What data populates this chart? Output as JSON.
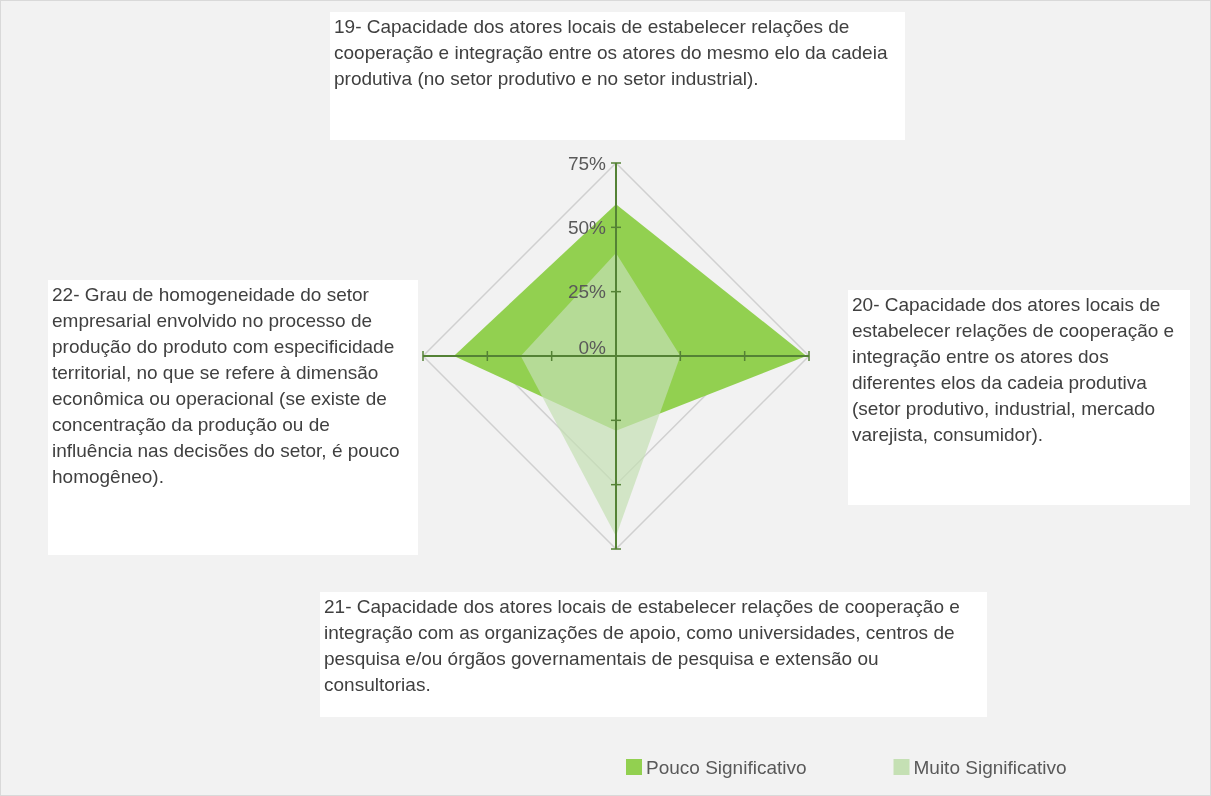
{
  "chart_data": {
    "type": "radar",
    "categories": [
      "19- Capacidade dos atores locais de estabelecer relações de cooperação e integração entre os atores do mesmo elo da cadeia produtiva (no setor produtivo e no setor industrial).",
      "20- Capacidade dos atores locais de estabelecer relações de cooperação e integração entre os atores dos diferentes elos da cadeia produtiva (setor produtivo, industrial, mercado varejista, consumidor).",
      "21- Capacidade dos atores locais de estabelecer relações de cooperação e integração com as organizações de apoio, como universidades, centros de pesquisa e/ou órgãos governamentais de pesquisa e extensão ou consultorias.",
      "22- Grau de homogeneidade do setor empresarial envolvido no processo de produção do produto com especificidade territorial, no que se refere à dimensão econômica ou operacional (se existe de concentração da produção ou de influência nas decisões do setor, é pouco homogêneo)."
    ],
    "series": [
      {
        "name": "Pouco Significativo",
        "color": "#92d050",
        "values": [
          59,
          74,
          29,
          63
        ]
      },
      {
        "name": "Muito Significativo",
        "color": "#c5e0b4",
        "values": [
          40,
          25,
          70,
          37
        ]
      }
    ],
    "ylim": [
      0,
      75
    ],
    "yticks": [
      {
        "value": 0,
        "label": "0%"
      },
      {
        "value": 25,
        "label": "25%"
      },
      {
        "value": 50,
        "label": "50%"
      },
      {
        "value": 75,
        "label": "75%"
      }
    ],
    "grid": true,
    "legend": "bottom right"
  }
}
